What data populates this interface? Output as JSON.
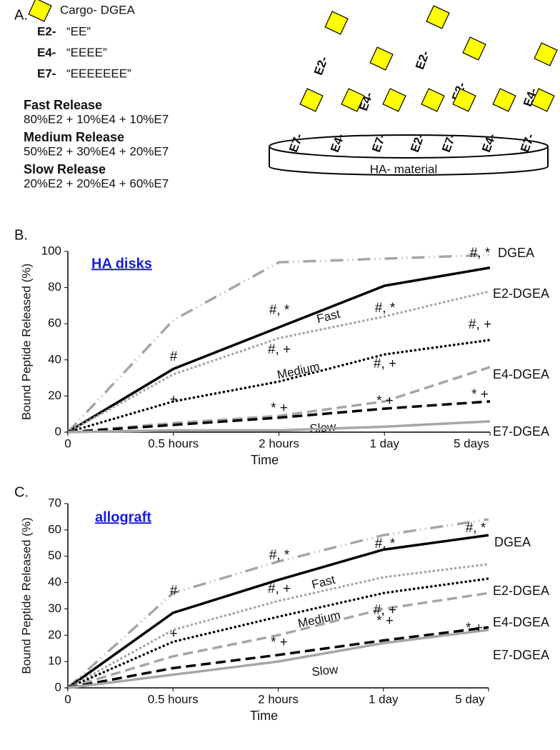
{
  "panel_a": {
    "label": "A.",
    "cargo": "Cargo- DGEA",
    "peptides": [
      {
        "name": "E2-",
        "sequence": "“EE”",
        "color": "#1f1fd6"
      },
      {
        "name": "E4-",
        "sequence": "“EEEE”",
        "color": "#22cc33"
      },
      {
        "name": "E7-",
        "sequence": "“EEEEEEE”",
        "color": "#e01b1b"
      }
    ],
    "releases": [
      {
        "name": "Fast Release",
        "formula": "80%E2 + 10%E4 + 10%E7"
      },
      {
        "name": "Medium Release",
        "formula": "50%E2 + 30%E4 + 20%E7"
      },
      {
        "name": "Slow Release",
        "formula": "20%E2 + 20%E4 + 60%E7"
      }
    ],
    "material": "HA- material",
    "free_molecules": [
      "E2-",
      "E2-",
      "E4-",
      "E2-",
      "E4-"
    ],
    "bound_molecules": [
      "E7-",
      "E4-",
      "E7-",
      "E2-",
      "E7-",
      "E4-",
      "E7-"
    ]
  },
  "chart_data": [
    {
      "type": "line",
      "panel": "B.",
      "title": "HA disks",
      "x_label": "Time",
      "y_label": "Bound Peptide Released (%)",
      "categories": [
        "0",
        "0.5 hours",
        "2 hours",
        "1 day",
        "5 days"
      ],
      "ylim": [
        0,
        100
      ],
      "yticks": [
        0,
        20,
        40,
        60,
        80,
        100
      ],
      "series": [
        {
          "name": "DGEA",
          "color": "#a6a6a6",
          "linestyle": "dashdot",
          "values": [
            0,
            62,
            94,
            96,
            98
          ]
        },
        {
          "name": "Fast",
          "color": "#000000",
          "linestyle": "solid",
          "values": [
            0,
            35,
            58,
            81,
            91
          ]
        },
        {
          "name": "E2-DGEA",
          "color": "#a6a6a6",
          "linestyle": "dotted",
          "values": [
            0,
            32,
            52,
            64,
            78
          ]
        },
        {
          "name": "Medium",
          "color": "#000000",
          "linestyle": "dotted",
          "values": [
            0,
            17,
            28,
            43,
            51
          ]
        },
        {
          "name": "E4-DGEA",
          "color": "#a6a6a6",
          "linestyle": "dashed",
          "values": [
            0,
            5,
            9,
            17,
            36
          ]
        },
        {
          "name": "Slow",
          "color": "#000000",
          "linestyle": "dashed",
          "values": [
            0,
            4,
            8,
            13,
            17
          ]
        },
        {
          "name": "E7-DGEA",
          "color": "#a6a6a6",
          "linestyle": "solid",
          "values": [
            0,
            1,
            1,
            3,
            6
          ]
        }
      ],
      "annotations": [
        "#",
        "#, *",
        "#, *",
        "#, *",
        "#, +",
        "#, +",
        "#, +",
        "* +",
        "* +",
        "* +",
        "+"
      ]
    },
    {
      "type": "line",
      "panel": "C.",
      "title": "allograft",
      "x_label": "Time",
      "y_label": "Bound Peptide Released (%)",
      "categories": [
        "0",
        "0.5 hours",
        "2 hours",
        "1 day",
        "5 day"
      ],
      "ylim": [
        0,
        70
      ],
      "yticks": [
        0,
        10,
        20,
        30,
        40,
        50,
        60,
        70
      ],
      "series": [
        {
          "name": "DGEA",
          "color": "#a6a6a6",
          "linestyle": "dashdot",
          "values": [
            0,
            36,
            48,
            58,
            64
          ]
        },
        {
          "name": "Fast",
          "color": "#000000",
          "linestyle": "solid",
          "values": [
            0,
            28.5,
            41,
            52.5,
            58
          ]
        },
        {
          "name": "E2-DGEA",
          "color": "#a6a6a6",
          "linestyle": "dotted",
          "values": [
            0,
            22,
            33,
            42,
            47
          ]
        },
        {
          "name": "Medium",
          "color": "#000000",
          "linestyle": "dotted",
          "values": [
            0,
            17.5,
            27,
            36,
            41.5
          ]
        },
        {
          "name": "E4-DGEA",
          "color": "#a6a6a6",
          "linestyle": "dashed",
          "values": [
            0,
            12,
            20,
            30,
            36
          ]
        },
        {
          "name": "Slow",
          "color": "#000000",
          "linestyle": "dashed",
          "values": [
            0,
            7.5,
            12.5,
            18,
            23
          ]
        },
        {
          "name": "E7-DGEA",
          "color": "#a6a6a6",
          "linestyle": "solid",
          "values": [
            0,
            5,
            10,
            17,
            22
          ]
        }
      ],
      "annotations": [
        "#",
        "#, *",
        "#, *",
        "#, *",
        "#, +",
        "#, +",
        "* +",
        "* +",
        "* +",
        "+"
      ]
    }
  ]
}
